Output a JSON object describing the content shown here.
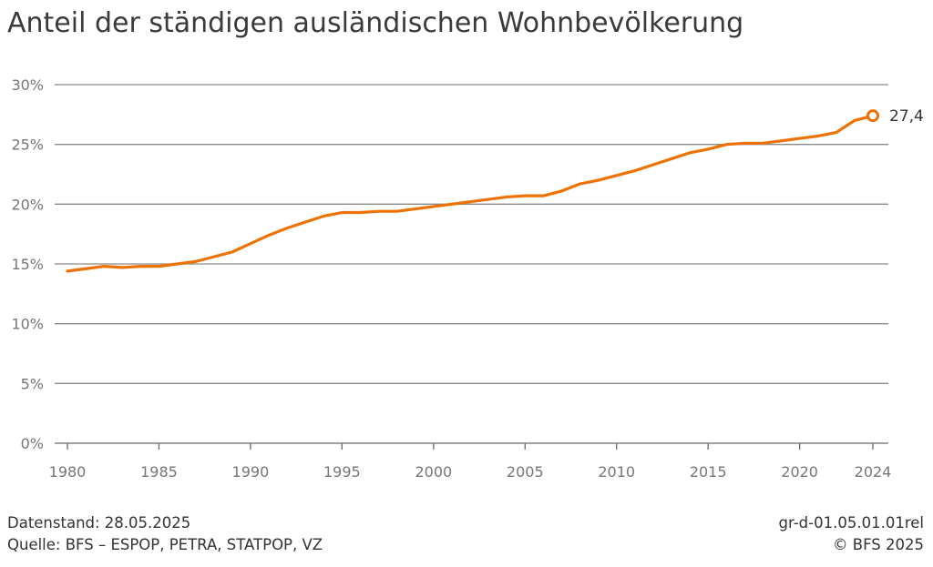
{
  "chart_data": {
    "type": "line",
    "title": "Anteil der ständigen ausländischen Wohnbevölkerung",
    "xlabel": "",
    "ylabel": "",
    "xlim": [
      1980,
      2024
    ],
    "ylim": [
      0,
      30
    ],
    "x_ticks": [
      1980,
      1985,
      1990,
      1995,
      2000,
      2005,
      2010,
      2015,
      2020,
      2024
    ],
    "x_tick_labels": [
      "1980",
      "1985",
      "1990",
      "1995",
      "2000",
      "2005",
      "2010",
      "2015",
      "2020",
      "2024"
    ],
    "y_ticks": [
      0,
      5,
      10,
      15,
      20,
      25,
      30
    ],
    "y_tick_labels": [
      "0%",
      "5%",
      "10%",
      "15%",
      "20%",
      "25%",
      "30%"
    ],
    "grid": "horizontal",
    "color": "#ee7203",
    "series": [
      {
        "x": [
          1980,
          1981,
          1982,
          1983,
          1984,
          1985,
          1986,
          1987,
          1988,
          1989,
          1990,
          1991,
          1992,
          1993,
          1994,
          1995,
          1996,
          1997,
          1998,
          1999,
          2000,
          2001,
          2002,
          2003,
          2004,
          2005,
          2006,
          2007,
          2008,
          2009,
          2010,
          2011,
          2012,
          2013,
          2014,
          2015,
          2016,
          2017,
          2018,
          2019,
          2020,
          2021,
          2022,
          2023,
          2024
        ],
        "values": [
          14.4,
          14.6,
          14.8,
          14.7,
          14.8,
          14.8,
          15.0,
          15.2,
          15.6,
          16.0,
          16.7,
          17.4,
          18.0,
          18.5,
          19.0,
          19.3,
          19.3,
          19.4,
          19.4,
          19.6,
          19.8,
          20.0,
          20.2,
          20.4,
          20.6,
          20.7,
          20.7,
          21.1,
          21.7,
          22.0,
          22.4,
          22.8,
          23.3,
          23.8,
          24.3,
          24.6,
          25.0,
          25.1,
          25.1,
          25.3,
          25.5,
          25.7,
          26.0,
          27.0,
          27.4
        ]
      }
    ],
    "end_label": "27,4"
  },
  "footer": {
    "datenstand": "Datenstand: 28.05.2025",
    "quelle": "Quelle: BFS – ESPOP, PETRA, STATPOP, VZ",
    "code": "gr-d-01.05.01.01rel",
    "copyright": "© BFS 2025"
  }
}
